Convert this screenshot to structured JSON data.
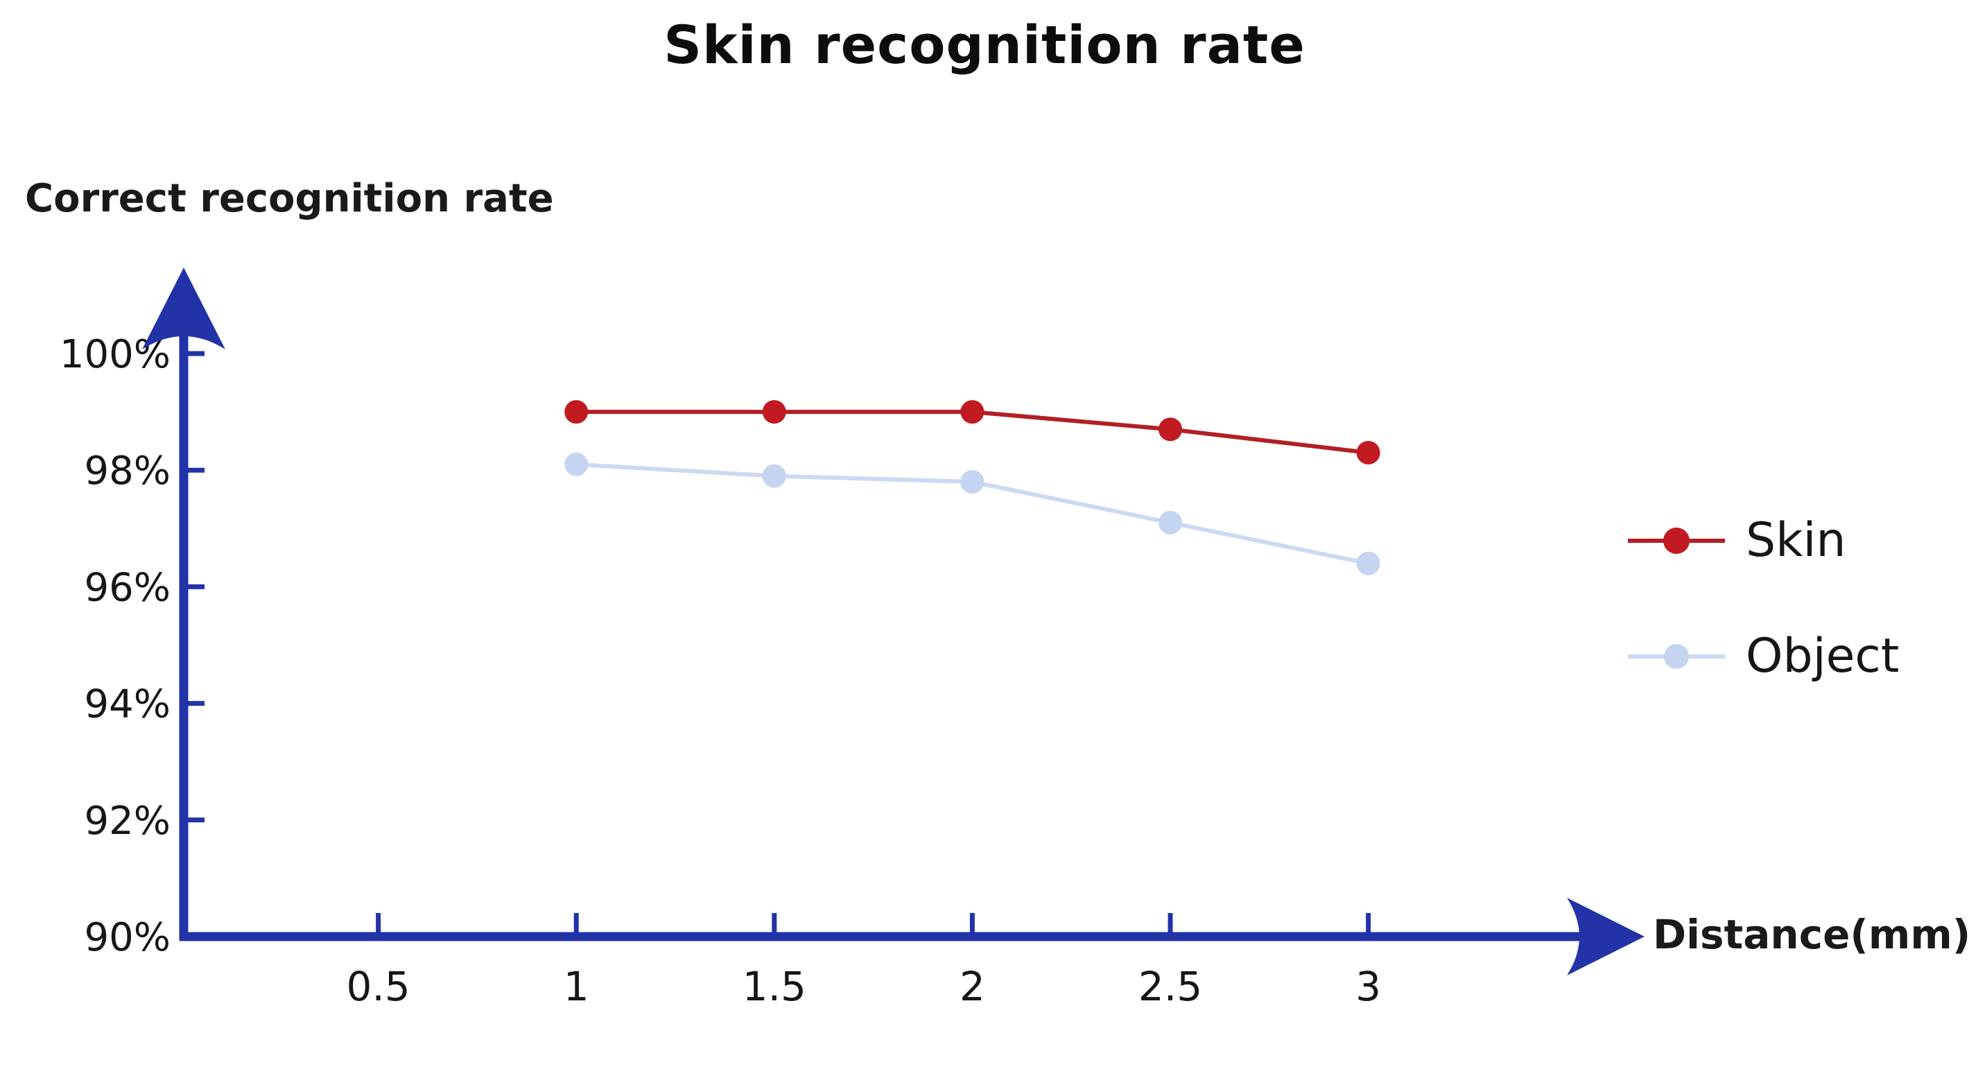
{
  "chart_data": {
    "type": "line",
    "title": "Skin recognition rate",
    "ylabel": "Correct recognition rate",
    "xlabel": "Distance(mm)",
    "x": [
      1,
      1.5,
      2,
      2.5,
      3
    ],
    "xticks": [
      0.5,
      1,
      1.5,
      2,
      2.5,
      3
    ],
    "xtick_labels": [
      "0.5",
      "1",
      "1.5",
      "2",
      "2.5",
      "3"
    ],
    "yticks": [
      100,
      98,
      96,
      94,
      92,
      90
    ],
    "ytick_labels": [
      "100%",
      "98%",
      "96%",
      "94%",
      "92%",
      "90%"
    ],
    "ylim": [
      90,
      101.4
    ],
    "xlim": [
      0,
      3.7
    ],
    "grid": false,
    "legend_position": "right",
    "axis_color": "#2233a8",
    "series": [
      {
        "name": "Skin",
        "values": [
          99.0,
          99.0,
          99.0,
          98.7,
          98.3
        ],
        "line_color": "#b02025",
        "marker_color": "#c11a20"
      },
      {
        "name": "Object",
        "values": [
          98.1,
          97.9,
          97.8,
          97.1,
          96.4
        ],
        "line_color": "#ccd9f2",
        "marker_color": "#c5d4f1"
      }
    ]
  }
}
